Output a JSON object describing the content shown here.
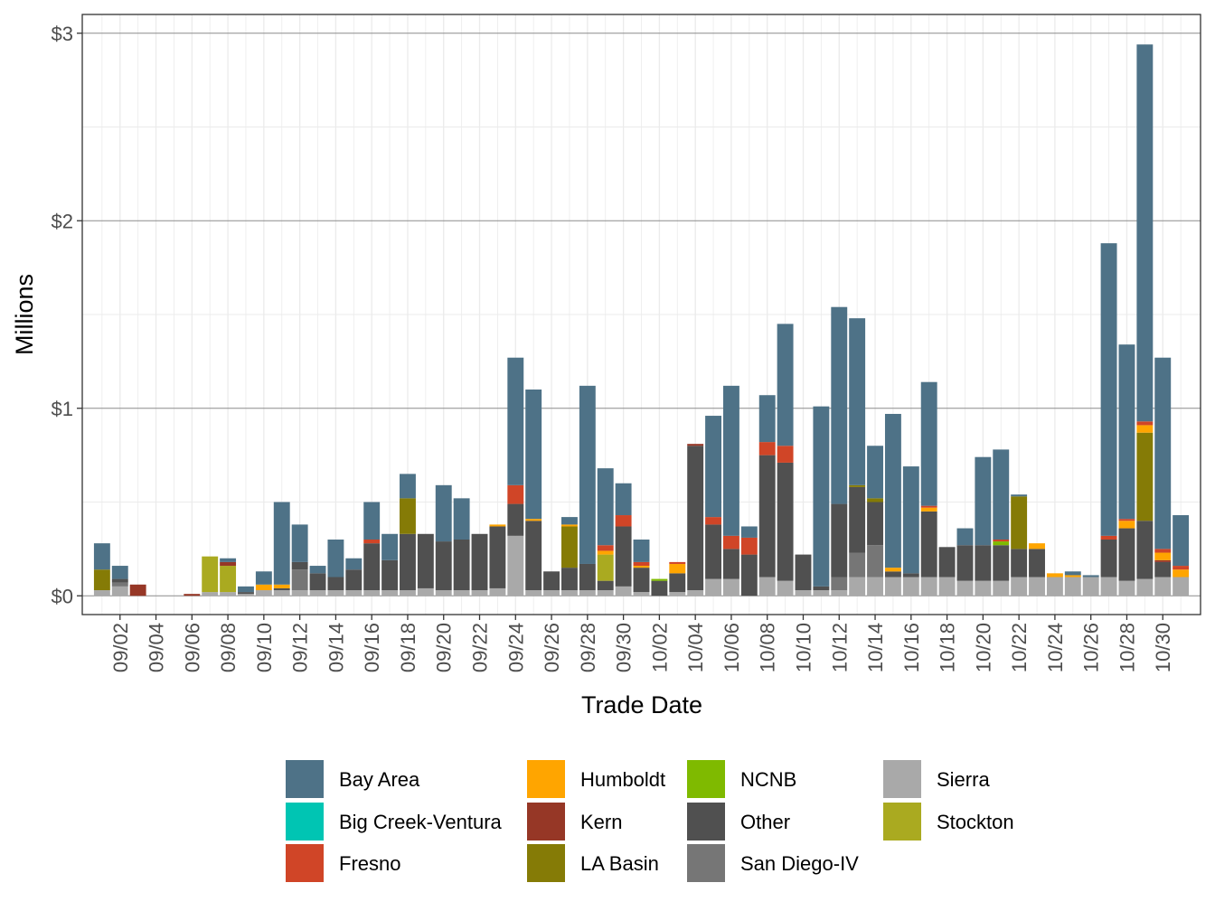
{
  "chart_data": {
    "type": "bar",
    "stacked": true,
    "xlabel": "Trade Date",
    "ylabel": "Millions",
    "ylim": [
      -0.1,
      3.1
    ],
    "y_ticks": [
      {
        "value": 0,
        "label": "$0"
      },
      {
        "value": 1,
        "label": "$1"
      },
      {
        "value": 2,
        "label": "$2"
      },
      {
        "value": 3,
        "label": "$3"
      }
    ],
    "x_tick_labels": [
      "09/02",
      "09/04",
      "09/06",
      "09/08",
      "09/10",
      "09/12",
      "09/14",
      "09/16",
      "09/18",
      "09/20",
      "09/22",
      "09/24",
      "09/26",
      "09/28",
      "09/30",
      "10/02",
      "10/04",
      "10/06",
      "10/08",
      "10/10",
      "10/12",
      "10/14",
      "10/16",
      "10/18",
      "10/20",
      "10/22",
      "10/24",
      "10/26",
      "10/28",
      "10/30"
    ],
    "categories": [
      "09/01",
      "09/02",
      "09/03",
      "09/04",
      "09/05",
      "09/06",
      "09/07",
      "09/08",
      "09/09",
      "09/10",
      "09/11",
      "09/12",
      "09/13",
      "09/14",
      "09/15",
      "09/16",
      "09/17",
      "09/18",
      "09/19",
      "09/20",
      "09/21",
      "09/22",
      "09/23",
      "09/24",
      "09/25",
      "09/26",
      "09/27",
      "09/28",
      "09/29",
      "09/30",
      "10/01",
      "10/02",
      "10/03",
      "10/04",
      "10/05",
      "10/06",
      "10/07",
      "10/08",
      "10/09",
      "10/10",
      "10/11",
      "10/12",
      "10/13",
      "10/14",
      "10/15",
      "10/16",
      "10/17",
      "10/18",
      "10/19",
      "10/20",
      "10/21",
      "10/22",
      "10/23",
      "10/24",
      "10/25",
      "10/26",
      "10/27",
      "10/28",
      "10/29",
      "10/30",
      "10/31"
    ],
    "legend": {
      "position": "bottom",
      "ncol": 4
    },
    "series": [
      {
        "name": "Sierra",
        "color": "#a9a9a9",
        "values": [
          0.03,
          0.05,
          0,
          0,
          0,
          0,
          0.02,
          0.02,
          0.01,
          0.03,
          0.03,
          0.03,
          0.03,
          0.03,
          0.03,
          0.03,
          0.03,
          0.03,
          0.04,
          0.03,
          0.03,
          0.03,
          0.04,
          0.32,
          0.03,
          0.03,
          0.03,
          0.03,
          0.03,
          0.05,
          0.02,
          0,
          0.02,
          0.03,
          0.09,
          0.09,
          0,
          0.1,
          0.08,
          0.03,
          0.03,
          0.03,
          0.1,
          0.1,
          0.1,
          0.1,
          0.1,
          0.1,
          0.08,
          0.08,
          0.08,
          0.1,
          0.1,
          0.1,
          0.1,
          0.1,
          0.1,
          0.08,
          0.09,
          0.1,
          0.1
        ]
      },
      {
        "name": "San Diego-IV",
        "color": "#767676",
        "values": [
          0,
          0.02,
          0,
          0,
          0,
          0,
          0,
          0,
          0,
          0,
          0,
          0.11,
          0,
          0,
          0,
          0,
          0,
          0,
          0,
          0,
          0,
          0,
          0,
          0,
          0,
          0,
          0,
          0,
          0,
          0,
          0,
          0,
          0,
          0,
          0,
          0,
          0,
          0,
          0,
          0,
          0,
          0.07,
          0.13,
          0.17,
          0,
          0,
          0,
          0,
          0,
          0,
          0,
          0,
          0,
          0,
          0,
          0,
          0,
          0,
          0,
          0,
          0
        ]
      },
      {
        "name": "Other",
        "color": "#505050",
        "values": [
          0,
          0.02,
          0,
          0,
          0,
          0,
          0,
          0,
          0.01,
          0,
          0.01,
          0.04,
          0.09,
          0.07,
          0.11,
          0.25,
          0.16,
          0.3,
          0.29,
          0.26,
          0.27,
          0.3,
          0.33,
          0.17,
          0.37,
          0.1,
          0.12,
          0.14,
          0.05,
          0.32,
          0.13,
          0.08,
          0.1,
          0.77,
          0.29,
          0.16,
          0.22,
          0.65,
          0.63,
          0.19,
          0.02,
          0.39,
          0.35,
          0.23,
          0.03,
          0.02,
          0.35,
          0.16,
          0.19,
          0.19,
          0.19,
          0.15,
          0.15,
          0,
          0,
          0,
          0.2,
          0.28,
          0.31,
          0.08,
          0
        ]
      },
      {
        "name": "Stockton",
        "color": "#aaaa20",
        "values": [
          0,
          0,
          0,
          0,
          0,
          0,
          0.19,
          0.14,
          0,
          0,
          0,
          0,
          0,
          0,
          0,
          0,
          0,
          0,
          0,
          0,
          0,
          0,
          0,
          0,
          0,
          0,
          0,
          0,
          0.14,
          0,
          0,
          0,
          0,
          0,
          0,
          0,
          0,
          0,
          0,
          0,
          0,
          0,
          0,
          0,
          0,
          0,
          0,
          0,
          0,
          0,
          0,
          0,
          0,
          0,
          0,
          0,
          0,
          0,
          0,
          0,
          0
        ]
      },
      {
        "name": "NCNB",
        "color": "#7fba00",
        "values": [
          0,
          0,
          0,
          0,
          0,
          0,
          0,
          0,
          0,
          0,
          0,
          0,
          0,
          0,
          0,
          0,
          0,
          0,
          0,
          0,
          0,
          0,
          0,
          0,
          0,
          0,
          0,
          0,
          0,
          0,
          0,
          0.01,
          0,
          0,
          0,
          0,
          0,
          0,
          0,
          0,
          0,
          0,
          0,
          0,
          0,
          0,
          0,
          0,
          0,
          0,
          0.02,
          0,
          0,
          0,
          0,
          0,
          0,
          0,
          0,
          0,
          0
        ]
      },
      {
        "name": "LA Basin",
        "color": "#857b06",
        "values": [
          0.11,
          0,
          0,
          0,
          0,
          0,
          0,
          0,
          0,
          0,
          0,
          0,
          0,
          0,
          0,
          0,
          0,
          0.19,
          0,
          0,
          0,
          0,
          0,
          0,
          0,
          0,
          0.22,
          0,
          0,
          0,
          0,
          0,
          0,
          0,
          0,
          0,
          0,
          0,
          0,
          0,
          0,
          0,
          0.01,
          0.02,
          0,
          0,
          0,
          0,
          0,
          0,
          0,
          0.28,
          0,
          0,
          0,
          0,
          0,
          0,
          0.47,
          0,
          0
        ]
      },
      {
        "name": "Kern",
        "color": "#963726",
        "values": [
          0,
          0,
          0.06,
          0,
          0,
          0.01,
          0,
          0.02,
          0,
          0,
          0,
          0,
          0,
          0,
          0,
          0,
          0,
          0,
          0,
          0,
          0,
          0,
          0,
          0,
          0,
          0,
          0,
          0,
          0,
          0,
          0,
          0,
          0,
          0.01,
          0,
          0,
          0,
          0,
          0,
          0,
          0,
          0,
          0,
          0,
          0,
          0,
          0,
          0,
          0,
          0,
          0,
          0,
          0,
          0,
          0,
          0,
          0,
          0,
          0,
          0.01,
          0
        ]
      },
      {
        "name": "Humboldt",
        "color": "#ffa500",
        "values": [
          0,
          0,
          0,
          0,
          0,
          0,
          0,
          0,
          0,
          0.03,
          0.02,
          0,
          0,
          0,
          0,
          0,
          0,
          0,
          0,
          0,
          0,
          0,
          0.01,
          0,
          0.01,
          0,
          0.01,
          0,
          0.02,
          0,
          0.01,
          0,
          0.05,
          0,
          0,
          0,
          0,
          0,
          0,
          0,
          0,
          0,
          0,
          0,
          0.02,
          0,
          0.02,
          0,
          0,
          0,
          0,
          0,
          0.03,
          0.02,
          0.01,
          0,
          0,
          0.04,
          0.04,
          0.04,
          0.04
        ]
      },
      {
        "name": "Fresno",
        "color": "#d04527",
        "values": [
          0,
          0,
          0,
          0,
          0,
          0,
          0,
          0,
          0,
          0,
          0,
          0,
          0,
          0,
          0,
          0.02,
          0,
          0,
          0,
          0,
          0,
          0,
          0,
          0.1,
          0,
          0,
          0,
          0,
          0.03,
          0.06,
          0.02,
          0,
          0.01,
          0,
          0.04,
          0.07,
          0.09,
          0.07,
          0.09,
          0,
          0,
          0,
          0,
          0,
          0,
          0,
          0.01,
          0,
          0,
          0,
          0.01,
          0,
          0,
          0,
          0,
          0,
          0.02,
          0.01,
          0.02,
          0.02,
          0.02
        ]
      },
      {
        "name": "Big Creek-Ventura",
        "color": "#00c5b3",
        "values": [
          0,
          0,
          0,
          0,
          0,
          0,
          0,
          0,
          0,
          0,
          0,
          0,
          0,
          0,
          0,
          0,
          0,
          0,
          0,
          0,
          0,
          0,
          0,
          0,
          0,
          0,
          0,
          0,
          0,
          0,
          0,
          0,
          0,
          0,
          0,
          0,
          0,
          0,
          0,
          0,
          0,
          0,
          0,
          0,
          0,
          0,
          0,
          0,
          0,
          0,
          0,
          0,
          0,
          0,
          0,
          0,
          0,
          0,
          0,
          0,
          0
        ]
      },
      {
        "name": "Bay Area",
        "color": "#4e7287",
        "values": [
          0.14,
          0.07,
          0,
          0,
          0,
          0,
          0,
          0.02,
          0.03,
          0.07,
          0.44,
          0.2,
          0.04,
          0.2,
          0.06,
          0.2,
          0.14,
          0.13,
          0,
          0.3,
          0.22,
          0,
          0,
          0.68,
          0.69,
          0,
          0.04,
          0.95,
          0.41,
          0.17,
          0.12,
          0,
          0,
          0,
          0.54,
          0.8,
          0.06,
          0.25,
          0.65,
          0,
          0.96,
          1.05,
          0.89,
          0.28,
          0.82,
          0.57,
          0.66,
          0,
          0.09,
          0.47,
          0.48,
          0.01,
          0,
          0,
          0.02,
          0.01,
          1.56,
          0.93,
          2.01,
          1.02,
          0.27
        ]
      }
    ]
  },
  "legend_items": [
    {
      "label": "Bay Area",
      "color": "#4e7287"
    },
    {
      "label": "Big Creek-Ventura",
      "color": "#00c5b3"
    },
    {
      "label": "Fresno",
      "color": "#d04527"
    },
    {
      "label": "Humboldt",
      "color": "#ffa500"
    },
    {
      "label": "Kern",
      "color": "#963726"
    },
    {
      "label": "LA Basin",
      "color": "#857b06"
    },
    {
      "label": "NCNB",
      "color": "#7fba00"
    },
    {
      "label": "Other",
      "color": "#505050"
    },
    {
      "label": "San Diego-IV",
      "color": "#767676"
    },
    {
      "label": "Sierra",
      "color": "#a9a9a9"
    },
    {
      "label": "Stockton",
      "color": "#aaaa20"
    }
  ]
}
